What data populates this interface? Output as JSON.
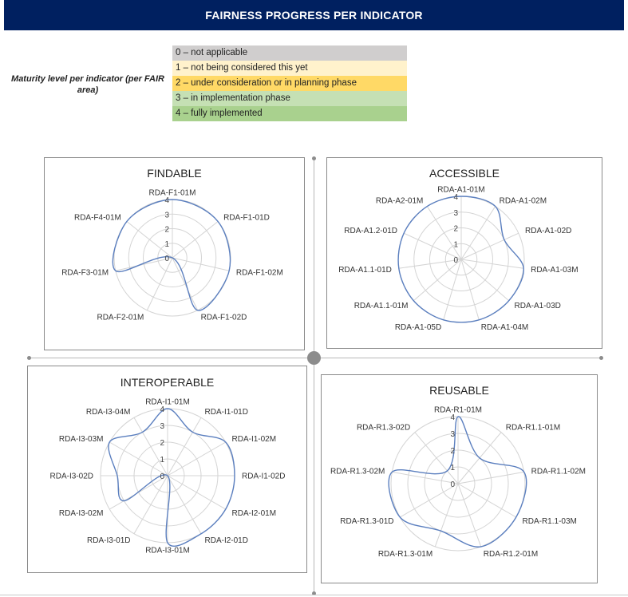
{
  "header": {
    "title": "FAIRNESS PROGRESS PER INDICATOR"
  },
  "maturity_label": "Maturity level per indicator (per FAIR area)",
  "legend": [
    {
      "label": "0 – not applicable",
      "color": "#d0cece"
    },
    {
      "label": "1 – not being considered this yet",
      "color": "#fff2cc"
    },
    {
      "label": "2 – under consideration or in planning phase",
      "color": "#ffd966"
    },
    {
      "label": "3 – in implementation phase",
      "color": "#c5e0b4"
    },
    {
      "label": "4 – fully implemented",
      "color": "#a9d18e"
    }
  ],
  "colors": {
    "series": "#5b7fbf",
    "grid": "#d4d4d4"
  },
  "chart_data": [
    {
      "type": "radar",
      "title": "FINDABLE",
      "rmax": 4,
      "ticks": [
        0,
        1,
        2,
        3,
        4
      ],
      "categories": [
        "RDA-F1-01M",
        "RDA-F1-01D",
        "RDA-F1-02M",
        "RDA-F1-02D",
        "RDA-F2-01M",
        "RDA-F3-01M",
        "RDA-F4-01M"
      ],
      "values": [
        4,
        4,
        4,
        4,
        0,
        4,
        4
      ]
    },
    {
      "type": "radar",
      "title": "ACCESSIBLE",
      "rmax": 4,
      "ticks": [
        0,
        1,
        2,
        3,
        4
      ],
      "categories": [
        "RDA-A1-01M",
        "RDA-A1-02M",
        "RDA-A1-02D",
        "RDA-A1-03M",
        "RDA-A1-03D",
        "RDA-A1-04M",
        "RDA-A1-05D",
        "RDA-A1.1-01M",
        "RDA-A1.1-01D",
        "RDA-A1.2-01D",
        "RDA-A2-01M"
      ],
      "values": [
        4,
        4,
        3,
        4,
        4,
        4,
        4,
        4,
        4,
        4,
        4
      ]
    },
    {
      "type": "radar",
      "title": "INTEROPERABLE",
      "rmax": 4,
      "ticks": [
        0,
        1,
        2,
        3,
        4
      ],
      "categories": [
        "RDA-I1-01M",
        "RDA-I1-01D",
        "RDA-I1-02M",
        "RDA-I1-02D",
        "RDA-I2-01M",
        "RDA-I2-01D",
        "RDA-I3-01M",
        "RDA-I3-01D",
        "RDA-I3-02M",
        "RDA-I3-02D",
        "RDA-I3-03M",
        "RDA-I3-04M"
      ],
      "values": [
        4,
        3,
        4,
        4,
        4,
        4,
        4,
        0,
        3,
        3,
        4,
        3
      ]
    },
    {
      "type": "radar",
      "title": "REUSABLE",
      "rmax": 4,
      "ticks": [
        0,
        1,
        2,
        3,
        4
      ],
      "categories": [
        "RDA-R1-01M",
        "RDA-R1.1-01M",
        "RDA-R1.1-02M",
        "RDA-R1.1-03M",
        "RDA-R1.2-01M",
        "RDA-R1.3-01M",
        "RDA-R1.3-01D",
        "RDA-R1.3-02M",
        "RDA-R1.3-02D"
      ],
      "values": [
        4,
        2,
        4,
        4,
        4,
        3,
        4,
        4,
        1
      ]
    }
  ]
}
